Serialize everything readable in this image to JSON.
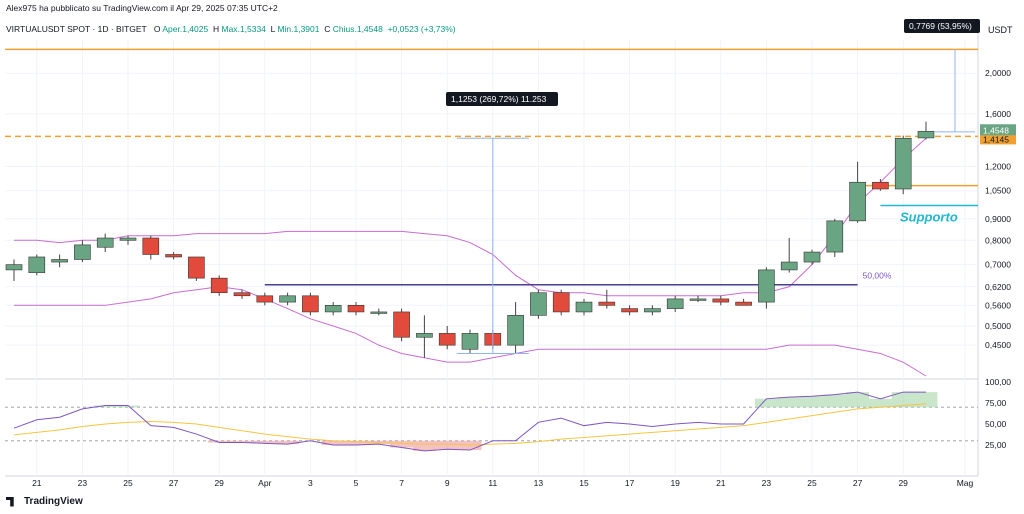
{
  "header": {
    "published": "Alex975 ha pubblicato su TradingView.com il Apr 29, 2025 07:35 UTC+2",
    "symbol": "VIRTUALUSDT SPOT · 1D · BITGET",
    "open_label": "O",
    "open": "Aper.1,4025",
    "high_label": "H",
    "high": "Max.1,5334",
    "low_label": "L",
    "low": "Min.1,3901",
    "close_label": "C",
    "close": "Chius.1,4548",
    "change": "+0,0523 (+3,73%)"
  },
  "axis_currency": "USDT",
  "footer_brand": "TradingView",
  "colors": {
    "up": "#6aa583",
    "down": "#e24b3b",
    "bb": "#c86dd0",
    "rsi": "#7e57c2",
    "rsi_ma": "#f5c542",
    "orange": "#f0a030",
    "cyan": "#22b8cf"
  },
  "chart_data": [
    {
      "type": "candlestick",
      "scale": "log",
      "ylim": [
        0.38,
        2.4
      ],
      "y_ticks": [
        "2,0000",
        "1,6000",
        "1,2000",
        "1,0500",
        "0,9000",
        "0,8000",
        "0,7000",
        "0,6200",
        "0,5600",
        "0,5000",
        "0,4500"
      ],
      "y_tick_values": [
        2.0,
        1.6,
        1.2,
        1.05,
        0.9,
        0.8,
        0.7,
        0.62,
        0.56,
        0.5,
        0.45
      ],
      "x_ticks": [
        "21",
        "23",
        "25",
        "27",
        "29",
        "Apr",
        "3",
        "5",
        "7",
        "9",
        "11",
        "13",
        "15",
        "17",
        "19",
        "21",
        "23",
        "25",
        "27",
        "29",
        "Mag"
      ],
      "candles": [
        {
          "o": 0.68,
          "h": 0.72,
          "l": 0.64,
          "c": 0.7
        },
        {
          "o": 0.67,
          "h": 0.74,
          "l": 0.66,
          "c": 0.73
        },
        {
          "o": 0.71,
          "h": 0.74,
          "l": 0.69,
          "c": 0.72
        },
        {
          "o": 0.72,
          "h": 0.8,
          "l": 0.71,
          "c": 0.78
        },
        {
          "o": 0.77,
          "h": 0.83,
          "l": 0.75,
          "c": 0.81
        },
        {
          "o": 0.8,
          "h": 0.82,
          "l": 0.78,
          "c": 0.81
        },
        {
          "o": 0.81,
          "h": 0.82,
          "l": 0.72,
          "c": 0.74
        },
        {
          "o": 0.74,
          "h": 0.75,
          "l": 0.72,
          "c": 0.73
        },
        {
          "o": 0.73,
          "h": 0.73,
          "l": 0.64,
          "c": 0.65
        },
        {
          "o": 0.65,
          "h": 0.66,
          "l": 0.59,
          "c": 0.6
        },
        {
          "o": 0.6,
          "h": 0.61,
          "l": 0.58,
          "c": 0.59
        },
        {
          "o": 0.59,
          "h": 0.6,
          "l": 0.56,
          "c": 0.57
        },
        {
          "o": 0.57,
          "h": 0.6,
          "l": 0.56,
          "c": 0.59
        },
        {
          "o": 0.59,
          "h": 0.6,
          "l": 0.53,
          "c": 0.54
        },
        {
          "o": 0.54,
          "h": 0.57,
          "l": 0.53,
          "c": 0.56
        },
        {
          "o": 0.56,
          "h": 0.57,
          "l": 0.53,
          "c": 0.54
        },
        {
          "o": 0.54,
          "h": 0.55,
          "l": 0.53,
          "c": 0.54
        },
        {
          "o": 0.54,
          "h": 0.55,
          "l": 0.46,
          "c": 0.47
        },
        {
          "o": 0.47,
          "h": 0.53,
          "l": 0.42,
          "c": 0.48
        },
        {
          "o": 0.48,
          "h": 0.5,
          "l": 0.44,
          "c": 0.45
        },
        {
          "o": 0.44,
          "h": 0.49,
          "l": 0.43,
          "c": 0.48
        },
        {
          "o": 0.48,
          "h": 0.49,
          "l": 0.44,
          "c": 0.45
        },
        {
          "o": 0.45,
          "h": 0.57,
          "l": 0.43,
          "c": 0.53
        },
        {
          "o": 0.53,
          "h": 0.61,
          "l": 0.52,
          "c": 0.6
        },
        {
          "o": 0.6,
          "h": 0.61,
          "l": 0.53,
          "c": 0.54
        },
        {
          "o": 0.54,
          "h": 0.58,
          "l": 0.53,
          "c": 0.57
        },
        {
          "o": 0.57,
          "h": 0.61,
          "l": 0.55,
          "c": 0.56
        },
        {
          "o": 0.55,
          "h": 0.56,
          "l": 0.53,
          "c": 0.54
        },
        {
          "o": 0.54,
          "h": 0.56,
          "l": 0.53,
          "c": 0.55
        },
        {
          "o": 0.55,
          "h": 0.59,
          "l": 0.54,
          "c": 0.58
        },
        {
          "o": 0.58,
          "h": 0.59,
          "l": 0.57,
          "c": 0.58
        },
        {
          "o": 0.58,
          "h": 0.59,
          "l": 0.56,
          "c": 0.57
        },
        {
          "o": 0.57,
          "h": 0.58,
          "l": 0.56,
          "c": 0.56
        },
        {
          "o": 0.57,
          "h": 0.69,
          "l": 0.55,
          "c": 0.68
        },
        {
          "o": 0.68,
          "h": 0.81,
          "l": 0.67,
          "c": 0.71
        },
        {
          "o": 0.71,
          "h": 0.76,
          "l": 0.7,
          "c": 0.75
        },
        {
          "o": 0.75,
          "h": 0.9,
          "l": 0.73,
          "c": 0.89
        },
        {
          "o": 0.89,
          "h": 1.23,
          "l": 0.88,
          "c": 1.1
        },
        {
          "o": 1.1,
          "h": 1.12,
          "l": 1.05,
          "c": 1.06
        },
        {
          "o": 1.06,
          "h": 1.42,
          "l": 1.03,
          "c": 1.4
        },
        {
          "o": 1.4025,
          "h": 1.5334,
          "l": 1.3901,
          "c": 1.4548
        }
      ],
      "bollinger_upper": [
        0.8,
        0.8,
        0.79,
        0.8,
        0.8,
        0.82,
        0.82,
        0.82,
        0.83,
        0.83,
        0.83,
        0.83,
        0.84,
        0.84,
        0.84,
        0.84,
        0.84,
        0.84,
        0.83,
        0.82,
        0.79,
        0.74,
        0.66,
        0.61,
        0.6,
        0.6,
        0.59,
        0.59,
        0.59,
        0.59,
        0.59,
        0.59,
        0.6,
        0.6,
        0.62,
        0.7,
        0.82,
        0.98,
        1.1,
        1.25,
        1.4
      ],
      "bollinger_lower": [
        0.56,
        0.56,
        0.56,
        0.56,
        0.56,
        0.57,
        0.58,
        0.6,
        0.61,
        0.62,
        0.61,
        0.58,
        0.55,
        0.52,
        0.5,
        0.48,
        0.45,
        0.43,
        0.42,
        0.41,
        0.41,
        0.42,
        0.43,
        0.44,
        0.44,
        0.44,
        0.44,
        0.44,
        0.44,
        0.44,
        0.44,
        0.44,
        0.44,
        0.44,
        0.45,
        0.45,
        0.45,
        0.44,
        0.43,
        0.41,
        0.38
      ],
      "horizontal_lines": [
        {
          "value": 2.28,
          "style": "solid",
          "color": "#f0a030"
        },
        {
          "value": 1.4145,
          "style": "dashed",
          "color": "#f0a030",
          "label": "1,4145"
        },
        {
          "value": 1.08,
          "style": "solid",
          "color": "#f0a030"
        },
        {
          "value": 0.968,
          "style": "solid",
          "color": "#22b8cf",
          "label": "Supporto"
        },
        {
          "value": 0.627,
          "style": "solid",
          "color": "#4a3f8c",
          "label": "50,00%"
        }
      ],
      "price_label": "1,4548",
      "measure_1": "1,1253 (269,72%) 11.253",
      "measure_2": "0,7769 (53,95%)"
    },
    {
      "type": "line",
      "indicator": "RSI",
      "ylim": [
        0,
        100
      ],
      "y_ticks": [
        "100,00",
        "75,00",
        "50,00",
        "25,00"
      ],
      "y_tick_values": [
        100,
        75,
        50,
        25
      ],
      "bands": [
        70,
        30
      ],
      "rsi": [
        45,
        55,
        58,
        68,
        72,
        72,
        48,
        46,
        38,
        28,
        28,
        27,
        26,
        30,
        25,
        25,
        26,
        22,
        18,
        20,
        19,
        30,
        30,
        52,
        57,
        48,
        52,
        50,
        47,
        50,
        52,
        50,
        50,
        80,
        82,
        83,
        85,
        88,
        80,
        88,
        88
      ],
      "rsi_ma": [
        37,
        40,
        43,
        47,
        50,
        52,
        53,
        52,
        50,
        46,
        42,
        38,
        35,
        32,
        30,
        29,
        28,
        27,
        26,
        26,
        25,
        26,
        27,
        29,
        32,
        34,
        36,
        38,
        40,
        42,
        44,
        46,
        48,
        52,
        56,
        60,
        64,
        68,
        70,
        72,
        74
      ]
    }
  ]
}
